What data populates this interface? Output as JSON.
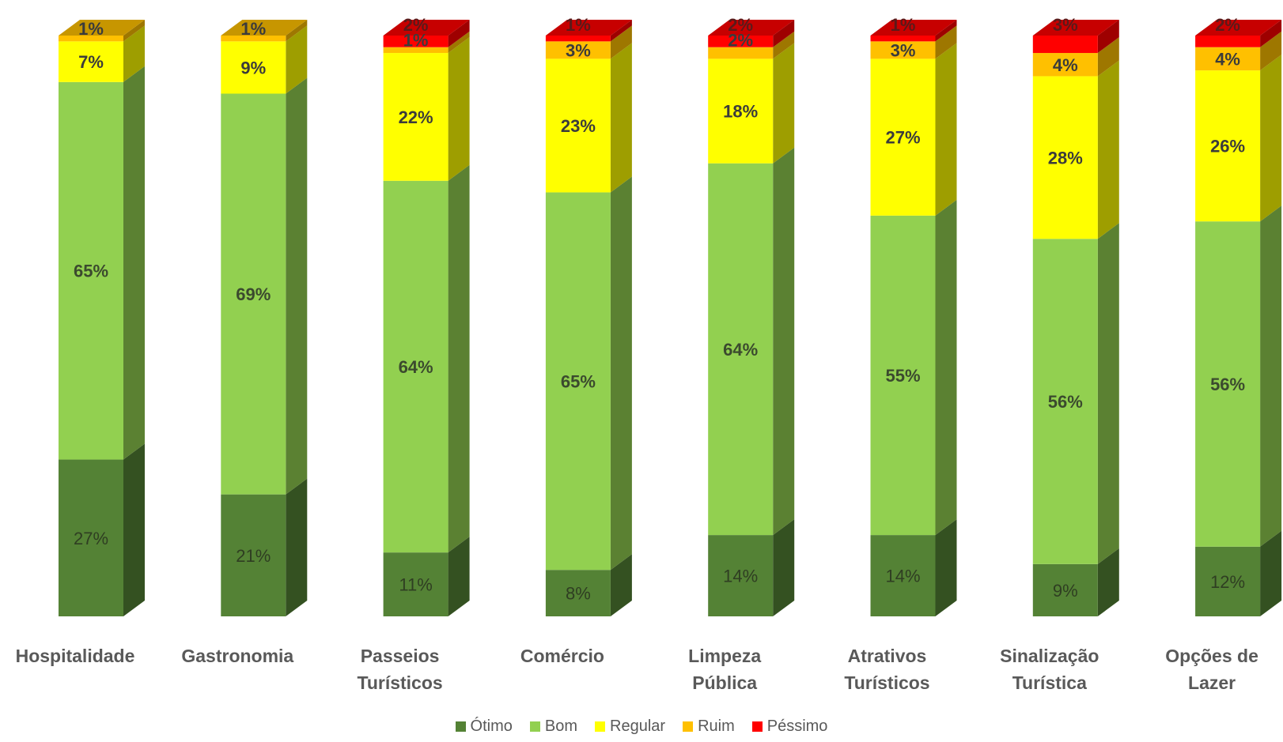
{
  "chart_data": {
    "type": "bar",
    "stacked": true,
    "style": "3d-stacked-column",
    "categories": [
      [
        "Hospitalidade"
      ],
      [
        "Gastronomia"
      ],
      [
        "Passeios",
        "Turísticos"
      ],
      [
        "Comércio"
      ],
      [
        "Limpeza",
        "Pública"
      ],
      [
        "Atrativos",
        "Turísticos"
      ],
      [
        "Sinalização",
        "Turística"
      ],
      [
        "Opções de",
        "Lazer"
      ]
    ],
    "series": [
      {
        "name": "Ótimo",
        "color": "#548235",
        "values": [
          27,
          21,
          11,
          8,
          14,
          14,
          9,
          12
        ]
      },
      {
        "name": "Bom",
        "color": "#92D050",
        "values": [
          65,
          69,
          64,
          65,
          64,
          55,
          56,
          56
        ]
      },
      {
        "name": "Regular",
        "color": "#FFFF00",
        "values": [
          7,
          9,
          22,
          23,
          18,
          27,
          28,
          26
        ]
      },
      {
        "name": "Ruim",
        "color": "#FFC000",
        "values": [
          1,
          1,
          1,
          3,
          2,
          3,
          4,
          4
        ]
      },
      {
        "name": "Péssimo",
        "color": "#FF0000",
        "values": [
          0,
          0,
          2,
          1,
          2,
          1,
          3,
          2
        ]
      }
    ],
    "data_labels": [
      [
        "27%",
        "65%",
        "7%",
        "1%",
        ""
      ],
      [
        "21%",
        "69%",
        "9%",
        "1%",
        ""
      ],
      [
        "11%",
        "64%",
        "22%",
        "1%",
        "2%"
      ],
      [
        "8%",
        "65%",
        "23%",
        "3%",
        "1%"
      ],
      [
        "14%",
        "64%",
        "18%",
        "2%",
        "2%"
      ],
      [
        "14%",
        "55%",
        "27%",
        "3%",
        "1%"
      ],
      [
        "9%",
        "56%",
        "28%",
        "4%",
        "3%"
      ],
      [
        "12%",
        "56%",
        "26%",
        "4%",
        "2%"
      ]
    ],
    "legend_position": "bottom",
    "grid": false,
    "ylim": [
      0,
      100
    ]
  }
}
